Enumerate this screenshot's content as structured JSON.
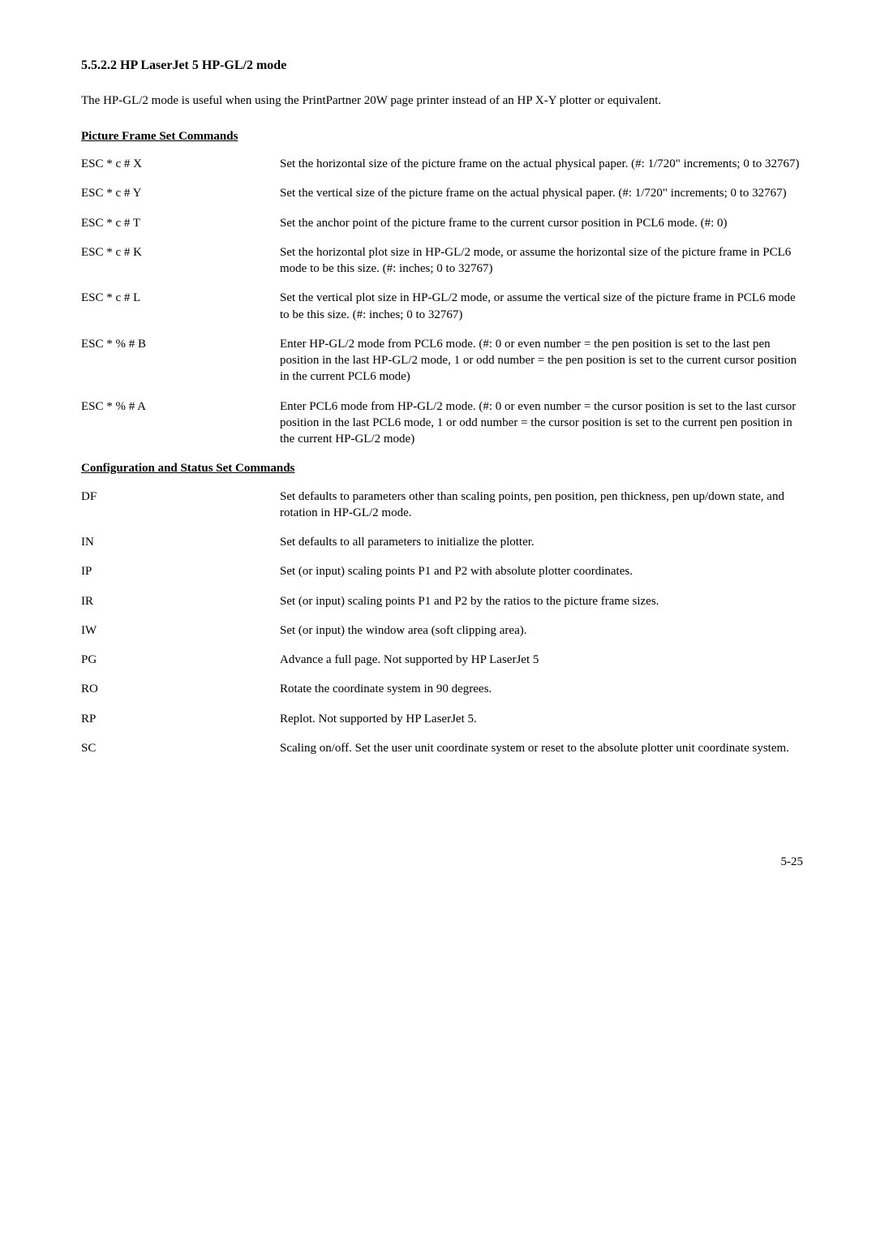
{
  "heading": "5.5.2.2   HP LaserJet 5 HP-GL/2 mode",
  "intro": "The HP-GL/2 mode is useful when using the PrintPartner 20W page printer instead of an HP X-Y plotter or equivalent.",
  "sections": [
    {
      "title": "Picture Frame Set Commands",
      "rows": [
        {
          "term": "ESC * c # X",
          "desc": "Set the horizontal size of the picture frame on the actual physical paper.  (#:  1/720\" increments; 0 to 32767)"
        },
        {
          "term": "ESC * c # Y",
          "desc": "Set the vertical size of the picture frame on the actual physical paper.  (#:  1/720\" increments; 0 to 32767)"
        },
        {
          "term": "ESC * c # T",
          "desc": "Set the anchor point of the picture frame to the current cursor position in PCL6 mode.  (#:  0)"
        },
        {
          "term": "ESC * c # K",
          "desc": "Set the horizontal plot size in HP-GL/2 mode, or assume the horizontal size of the picture frame in PCL6 mode to be this size.  (#:  inches; 0 to 32767)"
        },
        {
          "term": "ESC * c # L",
          "desc": "Set the vertical plot size in HP-GL/2 mode, or assume the vertical size of the picture frame in PCL6 mode to be this size.  (#:  inches; 0 to 32767)"
        },
        {
          "term": "ESC * % # B",
          "desc": "Enter HP-GL/2 mode from PCL6 mode.  (#:  0 or even number = the pen position is set to the last pen position in the last HP-GL/2 mode, 1 or odd number = the pen position is set to the current cursor position in the current PCL6 mode)"
        },
        {
          "term": "ESC * % # A",
          "desc": "Enter PCL6 mode from HP-GL/2 mode.  (#:  0 or even number = the cursor position is set to the last cursor position in the last PCL6 mode, 1 or odd number = the cursor position is set to the current pen position in the current HP-GL/2 mode)"
        }
      ]
    },
    {
      "title": "Configuration and Status Set Commands",
      "rows": [
        {
          "term": "DF",
          "desc": "Set defaults to parameters other than scaling points, pen position, pen thickness, pen up/down state, and rotation in HP-GL/2 mode."
        },
        {
          "term": "IN",
          "desc": "Set defaults to all parameters to initialize the plotter."
        },
        {
          "term": "IP",
          "desc": "Set (or input) scaling points P1 and P2 with absolute plotter coordinates."
        },
        {
          "term": "IR",
          "desc": "Set (or input) scaling points P1 and P2 by the ratios to the picture frame sizes."
        },
        {
          "term": "IW",
          "desc": "Set (or input) the window area (soft clipping area)."
        },
        {
          "term": "PG",
          "desc": "Advance a full page.  Not supported by HP LaserJet 5"
        },
        {
          "term": "RO",
          "desc": "Rotate the coordinate system in 90 degrees."
        },
        {
          "term": "RP",
          "desc": "Replot.  Not supported by HP LaserJet 5."
        },
        {
          "term": "SC",
          "desc": "Scaling on/off.  Set the user unit coordinate system or reset to the absolute plotter unit coordinate system."
        }
      ]
    }
  ],
  "page_number": "5-25"
}
